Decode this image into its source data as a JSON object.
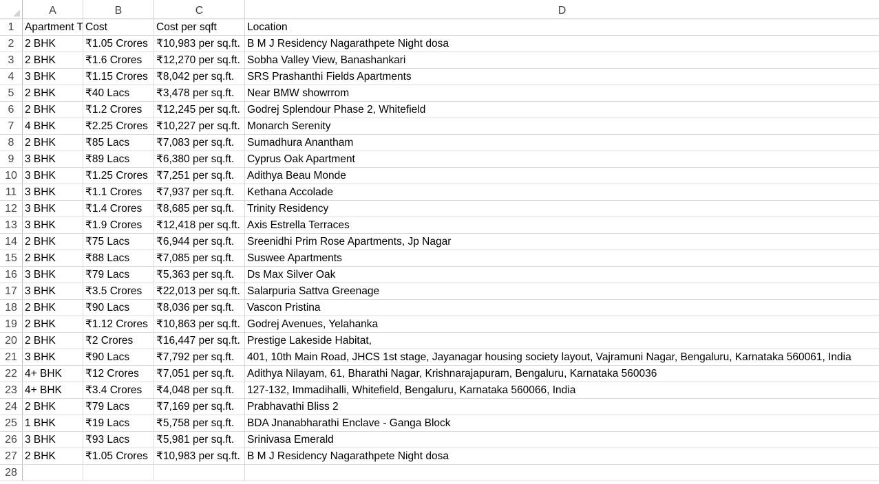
{
  "columns": [
    "A",
    "B",
    "C",
    "D"
  ],
  "header": {
    "row_number": "1",
    "cells": [
      "Apartment Type",
      "Cost",
      "Cost per sqft",
      "Location"
    ]
  },
  "rows": [
    {
      "n": "2",
      "a": "2 BHK",
      "b": "₹1.05 Crores",
      "c": "₹10,983 per sq.ft.",
      "d": "B M J Residency Nagarathpete Night dosa"
    },
    {
      "n": "3",
      "a": "2 BHK",
      "b": "₹1.6 Crores",
      "c": "₹12,270 per sq.ft.",
      "d": "Sobha Valley View, Banashankari"
    },
    {
      "n": "4",
      "a": "3 BHK",
      "b": "₹1.15 Crores",
      "c": "₹8,042 per sq.ft.",
      "d": "SRS Prashanthi Fields Apartments"
    },
    {
      "n": "5",
      "a": "2 BHK",
      "b": "₹40 Lacs",
      "c": "₹3,478 per sq.ft.",
      "d": "Near BMW showrrom"
    },
    {
      "n": "6",
      "a": "2 BHK",
      "b": "₹1.2 Crores",
      "c": "₹12,245 per sq.ft.",
      "d": "Godrej Splendour Phase 2, Whitefield"
    },
    {
      "n": "7",
      "a": "4 BHK",
      "b": "₹2.25 Crores",
      "c": "₹10,227 per sq.ft.",
      "d": "Monarch Serenity"
    },
    {
      "n": "8",
      "a": "2 BHK",
      "b": "₹85 Lacs",
      "c": "₹7,083 per sq.ft.",
      "d": "Sumadhura Anantham"
    },
    {
      "n": "9",
      "a": "3 BHK",
      "b": "₹89 Lacs",
      "c": "₹6,380 per sq.ft.",
      "d": "Cyprus Oak Apartment"
    },
    {
      "n": "10",
      "a": "3 BHK",
      "b": "₹1.25 Crores",
      "c": "₹7,251 per sq.ft.",
      "d": "Adithya Beau Monde"
    },
    {
      "n": "11",
      "a": "3 BHK",
      "b": "₹1.1 Crores",
      "c": "₹7,937 per sq.ft.",
      "d": "Kethana Accolade"
    },
    {
      "n": "12",
      "a": "3 BHK",
      "b": "₹1.4 Crores",
      "c": "₹8,685 per sq.ft.",
      "d": "Trinity Residency"
    },
    {
      "n": "13",
      "a": "3 BHK",
      "b": "₹1.9 Crores",
      "c": "₹12,418 per sq.ft.",
      "d": "Axis Estrella Terraces"
    },
    {
      "n": "14",
      "a": "2 BHK",
      "b": "₹75 Lacs",
      "c": "₹6,944 per sq.ft.",
      "d": "Sreenidhi Prim Rose Apartments, Jp Nagar"
    },
    {
      "n": "15",
      "a": "2 BHK",
      "b": "₹88 Lacs",
      "c": "₹7,085 per sq.ft.",
      "d": "Suswee Apartments"
    },
    {
      "n": "16",
      "a": "3 BHK",
      "b": "₹79 Lacs",
      "c": "₹5,363 per sq.ft.",
      "d": "Ds Max Silver Oak"
    },
    {
      "n": "17",
      "a": "3 BHK",
      "b": "₹3.5 Crores",
      "c": "₹22,013 per sq.ft.",
      "d": "Salarpuria Sattva Greenage"
    },
    {
      "n": "18",
      "a": "2 BHK",
      "b": "₹90 Lacs",
      "c": "₹8,036 per sq.ft.",
      "d": "Vascon Pristina"
    },
    {
      "n": "19",
      "a": "2 BHK",
      "b": "₹1.12 Crores",
      "c": "₹10,863 per sq.ft.",
      "d": "Godrej Avenues, Yelahanka"
    },
    {
      "n": "20",
      "a": "2 BHK",
      "b": "₹2 Crores",
      "c": "₹16,447 per sq.ft.",
      "d": "Prestige Lakeside Habitat,"
    },
    {
      "n": "21",
      "a": "3 BHK",
      "b": "₹90 Lacs",
      "c": "₹7,792 per sq.ft.",
      "d": "401, 10th Main Road, JHCS 1st stage, Jayanagar housing society layout, Vajramuni Nagar, Bengaluru, Karnataka 560061, India"
    },
    {
      "n": "22",
      "a": "4+ BHK",
      "b": "₹12 Crores",
      "c": "₹7,051 per sq.ft.",
      "d": "Adithya Nilayam, 61, Bharathi Nagar, Krishnarajapuram, Bengaluru, Karnataka 560036"
    },
    {
      "n": "23",
      "a": "4+ BHK",
      "b": "₹3.4 Crores",
      "c": "₹4,048 per sq.ft.",
      "d": "127-132, Immadihalli, Whitefield, Bengaluru, Karnataka 560066, India"
    },
    {
      "n": "24",
      "a": "2 BHK",
      "b": "₹79 Lacs",
      "c": "₹7,169 per sq.ft.",
      "d": "Prabhavathi Bliss 2"
    },
    {
      "n": "25",
      "a": "1 BHK",
      "b": "₹19 Lacs",
      "c": "₹5,758 per sq.ft.",
      "d": "BDA Jnanabharathi Enclave - Ganga Block"
    },
    {
      "n": "26",
      "a": "3 BHK",
      "b": "₹93 Lacs",
      "c": "₹5,981 per sq.ft.",
      "d": "Srinivasa Emerald"
    },
    {
      "n": "27",
      "a": "2 BHK",
      "b": "₹1.05 Crores",
      "c": "₹10,983 per sq.ft.",
      "d": "B M J Residency Nagarathpete Night dosa"
    },
    {
      "n": "28",
      "a": "",
      "b": "",
      "c": "",
      "d": ""
    }
  ]
}
